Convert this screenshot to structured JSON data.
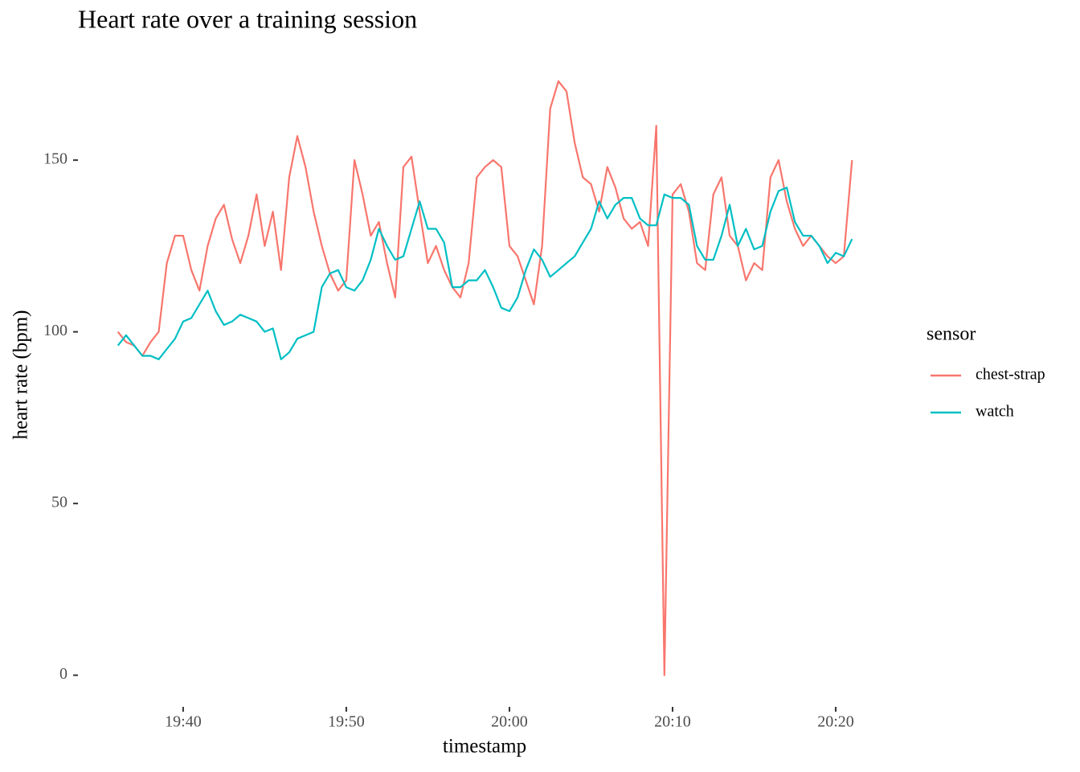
{
  "chart_data": {
    "type": "line",
    "title": "Heart rate over a training session",
    "x_label": "timestamp",
    "y_label": "heart rate (bpm)",
    "legend_title": "sensor",
    "legend_position": "right",
    "x": [
      1176,
      1176.5,
      1177,
      1177.5,
      1178,
      1178.5,
      1179,
      1179.5,
      1180,
      1180.5,
      1181,
      1181.5,
      1182,
      1182.5,
      1183,
      1183.5,
      1184,
      1184.5,
      1185,
      1185.5,
      1186,
      1186.5,
      1187,
      1187.5,
      1188,
      1188.5,
      1189,
      1189.5,
      1190,
      1190.5,
      1191,
      1191.5,
      1192,
      1192.5,
      1193,
      1193.5,
      1194,
      1194.5,
      1195,
      1195.5,
      1196,
      1196.5,
      1197,
      1197.5,
      1198,
      1198.5,
      1199,
      1199.5,
      1200,
      1200.5,
      1201,
      1201.5,
      1202,
      1202.5,
      1203,
      1203.5,
      1204,
      1204.5,
      1205,
      1205.5,
      1206,
      1206.5,
      1207,
      1207.5,
      1208,
      1208.5,
      1209,
      1209.5,
      1210,
      1210.5,
      1211,
      1211.5,
      1212,
      1212.5,
      1213,
      1213.5,
      1214,
      1214.5,
      1215,
      1215.5,
      1216,
      1216.5,
      1217,
      1217.5,
      1218,
      1218.5,
      1219,
      1219.5,
      1220,
      1220.5,
      1221
    ],
    "series": [
      {
        "name": "chest-strap",
        "color": "#F8766D",
        "values": [
          100,
          97,
          96,
          93,
          97,
          100,
          120,
          128,
          128,
          118,
          112,
          125,
          133,
          137,
          127,
          120,
          128,
          140,
          125,
          135,
          118,
          145,
          157,
          148,
          135,
          125,
          117,
          112,
          115,
          150,
          140,
          128,
          132,
          120,
          110,
          148,
          151,
          135,
          120,
          125,
          118,
          113,
          110,
          120,
          145,
          148,
          150,
          148,
          125,
          122,
          115,
          108,
          125,
          165,
          173,
          170,
          155,
          145,
          143,
          135,
          148,
          142,
          133,
          130,
          132,
          125,
          160,
          0,
          140,
          143,
          135,
          120,
          118,
          140,
          145,
          128,
          125,
          115,
          120,
          118,
          145,
          150,
          138,
          130,
          125,
          128,
          125,
          122,
          120,
          122,
          150
        ]
      },
      {
        "name": "watch",
        "color": "#00BFC4",
        "values": [
          96,
          99,
          96,
          93,
          93,
          92,
          95,
          98,
          103,
          104,
          108,
          112,
          106,
          102,
          103,
          105,
          104,
          103,
          100,
          101,
          92,
          94,
          98,
          99,
          100,
          113,
          117,
          118,
          113,
          112,
          115,
          121,
          130,
          125,
          121,
          122,
          130,
          138,
          130,
          130,
          126,
          113,
          113,
          115,
          115,
          118,
          113,
          107,
          106,
          110,
          118,
          124,
          121,
          116,
          118,
          120,
          122,
          126,
          130,
          138,
          133,
          137,
          139,
          139,
          133,
          131,
          131,
          140,
          139,
          139,
          137,
          125,
          121,
          121,
          128,
          137,
          125,
          130,
          124,
          125,
          135,
          141,
          142,
          132,
          128,
          128,
          125,
          120,
          123,
          122,
          127
        ]
      }
    ],
    "xlim": [
      1173.6,
      1223.4
    ],
    "xticks": [
      {
        "value": 1180,
        "label": "19:40"
      },
      {
        "value": 1190,
        "label": "19:50"
      },
      {
        "value": 1200,
        "label": "20:00"
      },
      {
        "value": 1210,
        "label": "20:10"
      },
      {
        "value": 1220,
        "label": "20:20"
      }
    ],
    "ylim": [
      -8.75,
      183.75
    ],
    "yticks": [
      0,
      50,
      100,
      150
    ],
    "grid": false
  }
}
